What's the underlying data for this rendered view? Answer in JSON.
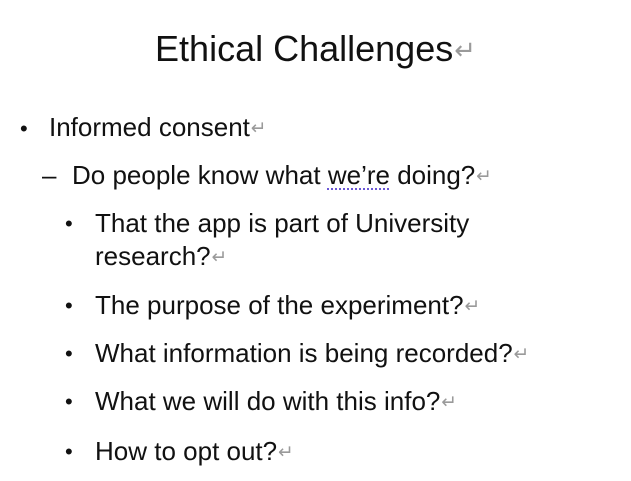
{
  "slide": {
    "title": "Ethical Challenges",
    "paragraph_mark": "↵",
    "level1": {
      "bullet": "•",
      "text": "Informed consent"
    },
    "level2": {
      "dash": "–",
      "text_before": "Do people know what ",
      "text_flagged": "we’re",
      "text_after": " doing?"
    },
    "level3": {
      "bullet": "•",
      "items": [
        {
          "line1": "That the app is part of University",
          "line2": "research?"
        },
        {
          "line1": "The purpose of the experiment?"
        },
        {
          "line1": "What information is being recorded?"
        },
        {
          "line1": "What we will do with this info?"
        },
        {
          "line1": "How to opt out?"
        }
      ]
    }
  }
}
